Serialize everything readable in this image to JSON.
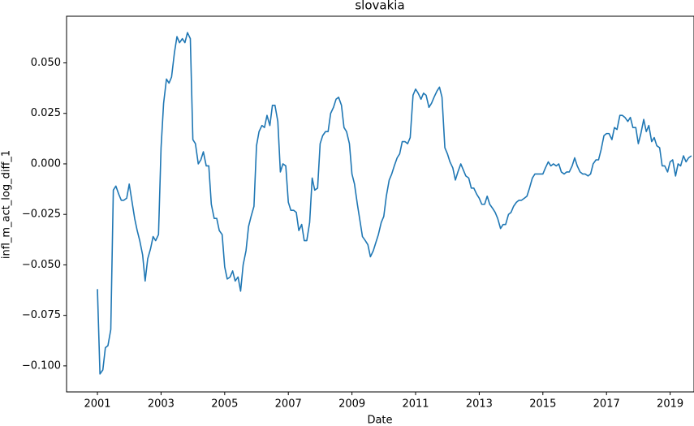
{
  "chart_data": {
    "type": "line",
    "title": "slovakia",
    "x_label": "Date",
    "y_label": "infl_m_act_log_diff_1",
    "color": "#1f77b4",
    "xlim": [
      2000.03,
      2019.75
    ],
    "ylim": [
      -0.1129,
      0.0731
    ],
    "xticks": [
      2001,
      2003,
      2005,
      2007,
      2009,
      2011,
      2013,
      2015,
      2017,
      2019
    ],
    "yticks": [
      {
        "value": -0.1,
        "label": "−0.100"
      },
      {
        "value": -0.075,
        "label": "−0.075"
      },
      {
        "value": -0.05,
        "label": "−0.050"
      },
      {
        "value": -0.025,
        "label": "−0.025"
      },
      {
        "value": 0,
        "label": "0.000"
      },
      {
        "value": 0.025,
        "label": "0.025"
      },
      {
        "value": 0.05,
        "label": "0.050"
      }
    ],
    "x": [
      2001.0,
      2001.08,
      2001.17,
      2001.25,
      2001.33,
      2001.42,
      2001.5,
      2001.58,
      2001.67,
      2001.75,
      2001.83,
      2001.92,
      2002.0,
      2002.08,
      2002.17,
      2002.25,
      2002.33,
      2002.42,
      2002.5,
      2002.58,
      2002.67,
      2002.75,
      2002.83,
      2002.92,
      2003.0,
      2003.08,
      2003.17,
      2003.25,
      2003.33,
      2003.42,
      2003.5,
      2003.58,
      2003.67,
      2003.75,
      2003.83,
      2003.92,
      2004.0,
      2004.08,
      2004.17,
      2004.25,
      2004.33,
      2004.42,
      2004.5,
      2004.58,
      2004.67,
      2004.75,
      2004.83,
      2004.92,
      2005.0,
      2005.08,
      2005.17,
      2005.25,
      2005.33,
      2005.42,
      2005.5,
      2005.58,
      2005.67,
      2005.75,
      2005.83,
      2005.92,
      2006.0,
      2006.08,
      2006.17,
      2006.25,
      2006.33,
      2006.42,
      2006.5,
      2006.58,
      2006.67,
      2006.75,
      2006.83,
      2006.92,
      2007.0,
      2007.08,
      2007.17,
      2007.25,
      2007.33,
      2007.42,
      2007.5,
      2007.58,
      2007.67,
      2007.75,
      2007.83,
      2007.92,
      2008.0,
      2008.08,
      2008.17,
      2008.25,
      2008.33,
      2008.42,
      2008.5,
      2008.58,
      2008.67,
      2008.75,
      2008.83,
      2008.92,
      2009.0,
      2009.08,
      2009.17,
      2009.25,
      2009.33,
      2009.42,
      2009.5,
      2009.58,
      2009.67,
      2009.75,
      2009.83,
      2009.92,
      2010.0,
      2010.08,
      2010.17,
      2010.25,
      2010.33,
      2010.42,
      2010.5,
      2010.58,
      2010.67,
      2010.75,
      2010.83,
      2010.92,
      2011.0,
      2011.08,
      2011.17,
      2011.25,
      2011.33,
      2011.42,
      2011.5,
      2011.58,
      2011.67,
      2011.75,
      2011.83,
      2011.92,
      2012.0,
      2012.08,
      2012.17,
      2012.25,
      2012.33,
      2012.42,
      2012.5,
      2012.58,
      2012.67,
      2012.75,
      2012.83,
      2012.92,
      2013.0,
      2013.08,
      2013.17,
      2013.25,
      2013.33,
      2013.42,
      2013.5,
      2013.58,
      2013.67,
      2013.75,
      2013.83,
      2013.92,
      2014.0,
      2014.08,
      2014.17,
      2014.25,
      2014.33,
      2014.42,
      2014.5,
      2014.58,
      2014.67,
      2014.75,
      2014.83,
      2014.92,
      2015.0,
      2015.08,
      2015.17,
      2015.25,
      2015.33,
      2015.42,
      2015.5,
      2015.58,
      2015.67,
      2015.75,
      2015.83,
      2015.92,
      2016.0,
      2016.08,
      2016.17,
      2016.25,
      2016.33,
      2016.42,
      2016.5,
      2016.58,
      2016.67,
      2016.75,
      2016.83,
      2016.92,
      2017.0,
      2017.08,
      2017.17,
      2017.25,
      2017.33,
      2017.42,
      2017.5,
      2017.58,
      2017.67,
      2017.75,
      2017.83,
      2017.92,
      2018.0,
      2018.08,
      2018.17,
      2018.25,
      2018.33,
      2018.42,
      2018.5,
      2018.58,
      2018.67,
      2018.75,
      2018.83,
      2018.92,
      2019.0,
      2019.08,
      2019.17,
      2019.25,
      2019.33,
      2019.42,
      2019.5,
      2019.58,
      2019.67
    ],
    "values": [
      -0.062,
      -0.104,
      -0.102,
      -0.091,
      -0.09,
      -0.082,
      -0.013,
      -0.011,
      -0.015,
      -0.018,
      -0.018,
      -0.017,
      -0.01,
      -0.018,
      -0.027,
      -0.033,
      -0.038,
      -0.045,
      -0.058,
      -0.047,
      -0.042,
      -0.036,
      -0.038,
      -0.035,
      0.008,
      0.03,
      0.042,
      0.04,
      0.043,
      0.055,
      0.063,
      0.06,
      0.062,
      0.06,
      0.065,
      0.062,
      0.012,
      0.01,
      0.0,
      0.002,
      0.006,
      -0.001,
      -0.001,
      -0.02,
      -0.027,
      -0.027,
      -0.033,
      -0.035,
      -0.051,
      -0.057,
      -0.056,
      -0.053,
      -0.058,
      -0.056,
      -0.063,
      -0.05,
      -0.043,
      -0.031,
      -0.026,
      -0.021,
      0.009,
      0.016,
      0.019,
      0.018,
      0.024,
      0.019,
      0.029,
      0.029,
      0.021,
      -0.004,
      0.0,
      -0.001,
      -0.019,
      -0.023,
      -0.023,
      -0.024,
      -0.033,
      -0.03,
      -0.038,
      -0.038,
      -0.029,
      -0.007,
      -0.013,
      -0.012,
      0.01,
      0.014,
      0.016,
      0.016,
      0.025,
      0.028,
      0.032,
      0.033,
      0.029,
      0.018,
      0.016,
      0.01,
      -0.005,
      -0.01,
      -0.02,
      -0.028,
      -0.036,
      -0.038,
      -0.04,
      -0.046,
      -0.043,
      -0.039,
      -0.035,
      -0.029,
      -0.026,
      -0.016,
      -0.008,
      -0.005,
      -0.001,
      0.003,
      0.005,
      0.011,
      0.011,
      0.01,
      0.013,
      0.034,
      0.037,
      0.035,
      0.032,
      0.035,
      0.034,
      0.028,
      0.03,
      0.033,
      0.036,
      0.038,
      0.033,
      0.008,
      0.005,
      0.001,
      -0.002,
      -0.008,
      -0.004,
      0.0,
      -0.003,
      -0.006,
      -0.007,
      -0.012,
      -0.012,
      -0.015,
      -0.017,
      -0.02,
      -0.02,
      -0.016,
      -0.02,
      -0.022,
      -0.024,
      -0.027,
      -0.032,
      -0.03,
      -0.03,
      -0.025,
      -0.024,
      -0.021,
      -0.019,
      -0.018,
      -0.018,
      -0.017,
      -0.016,
      -0.012,
      -0.007,
      -0.005,
      -0.005,
      -0.005,
      -0.005,
      -0.002,
      0.001,
      -0.001,
      0.0,
      -0.001,
      0.0,
      -0.004,
      -0.005,
      -0.004,
      -0.004,
      -0.001,
      0.003,
      -0.001,
      -0.004,
      -0.005,
      -0.005,
      -0.006,
      -0.005,
      0.0,
      0.002,
      0.002,
      0.007,
      0.014,
      0.015,
      0.015,
      0.012,
      0.018,
      0.017,
      0.024,
      0.024,
      0.023,
      0.021,
      0.023,
      0.018,
      0.018,
      0.01,
      0.015,
      0.022,
      0.016,
      0.019,
      0.011,
      0.013,
      0.009,
      0.008,
      -0.001,
      -0.001,
      -0.004,
      0.001,
      0.002,
      -0.006,
      0.0,
      -0.001,
      0.004,
      0.001,
      0.003,
      0.004
    ]
  }
}
